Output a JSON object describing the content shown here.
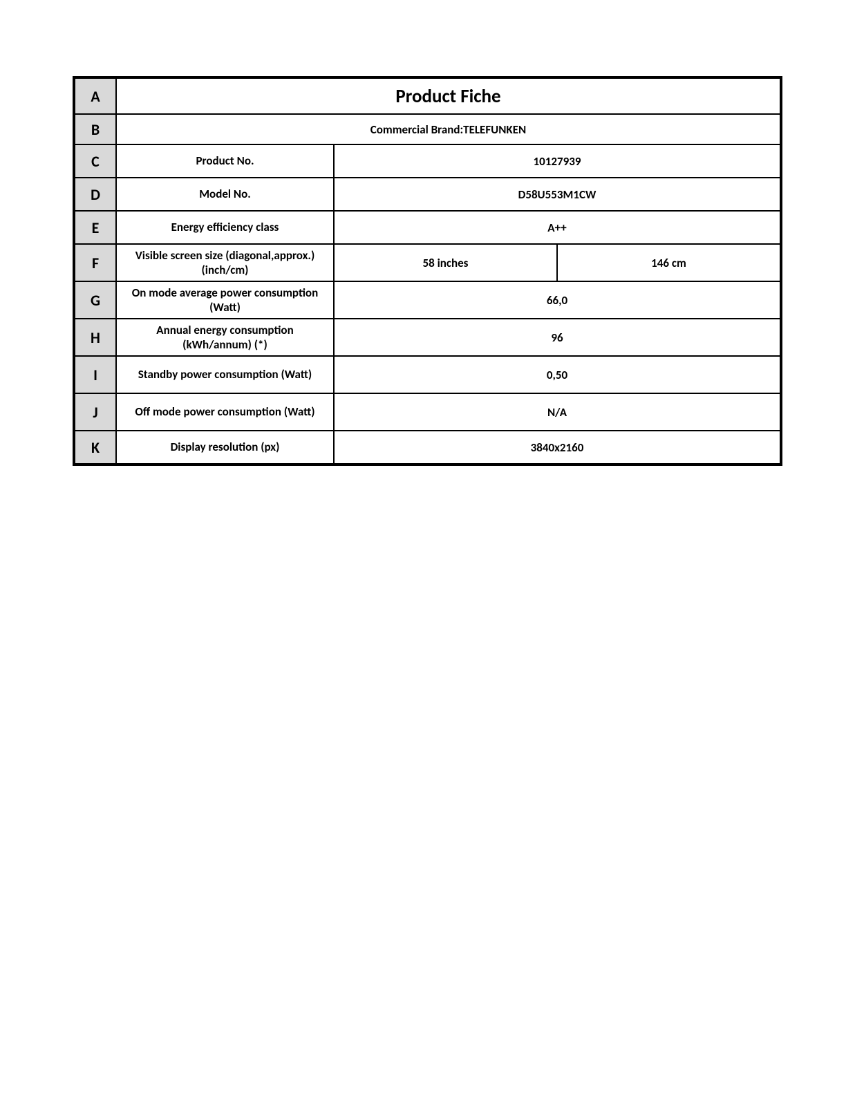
{
  "colors": {
    "letter_bg": "#d9d9d9",
    "border": "#000000",
    "text": "#000000",
    "background": "#ffffff"
  },
  "typography": {
    "font_family": "Calibri, Arial, sans-serif",
    "title_fontsize": 27,
    "letter_fontsize": 22,
    "body_fontsize": 17,
    "font_weight": "bold"
  },
  "layout": {
    "letter_col_width": 60,
    "label_col_width": 315,
    "outer_border_width": 3,
    "inner_border_width": 1.5
  },
  "rows": {
    "A": {
      "letter": "A",
      "title": "Product Fiche"
    },
    "B": {
      "letter": "B",
      "brand": "Commercial Brand:TELEFUNKEN"
    },
    "C": {
      "letter": "C",
      "label": "Product No.",
      "value": "10127939"
    },
    "D": {
      "letter": "D",
      "label": "Model No.",
      "value": "D58U553M1CW"
    },
    "E": {
      "letter": "E",
      "label": "Energy efficiency class",
      "value": "A++"
    },
    "F": {
      "letter": "F",
      "label": "Visible screen size (diagonal,approx.) (inch/cm)",
      "value1": "58 inches",
      "value2": "146 cm"
    },
    "G": {
      "letter": "G",
      "label": "On mode average power consumption (Watt)",
      "value": "66,0"
    },
    "H": {
      "letter": "H",
      "label": "Annual energy consumption (kWh/annum) (*)",
      "value": "96"
    },
    "I": {
      "letter": "I",
      "label": "Standby power consumption (Watt)",
      "value": "0,50"
    },
    "J": {
      "letter": "J",
      "label": "Off mode power consumption (Watt)",
      "value": "N/A"
    },
    "K": {
      "letter": "K",
      "label": "Display resolution (px)",
      "value": "3840x2160"
    }
  }
}
